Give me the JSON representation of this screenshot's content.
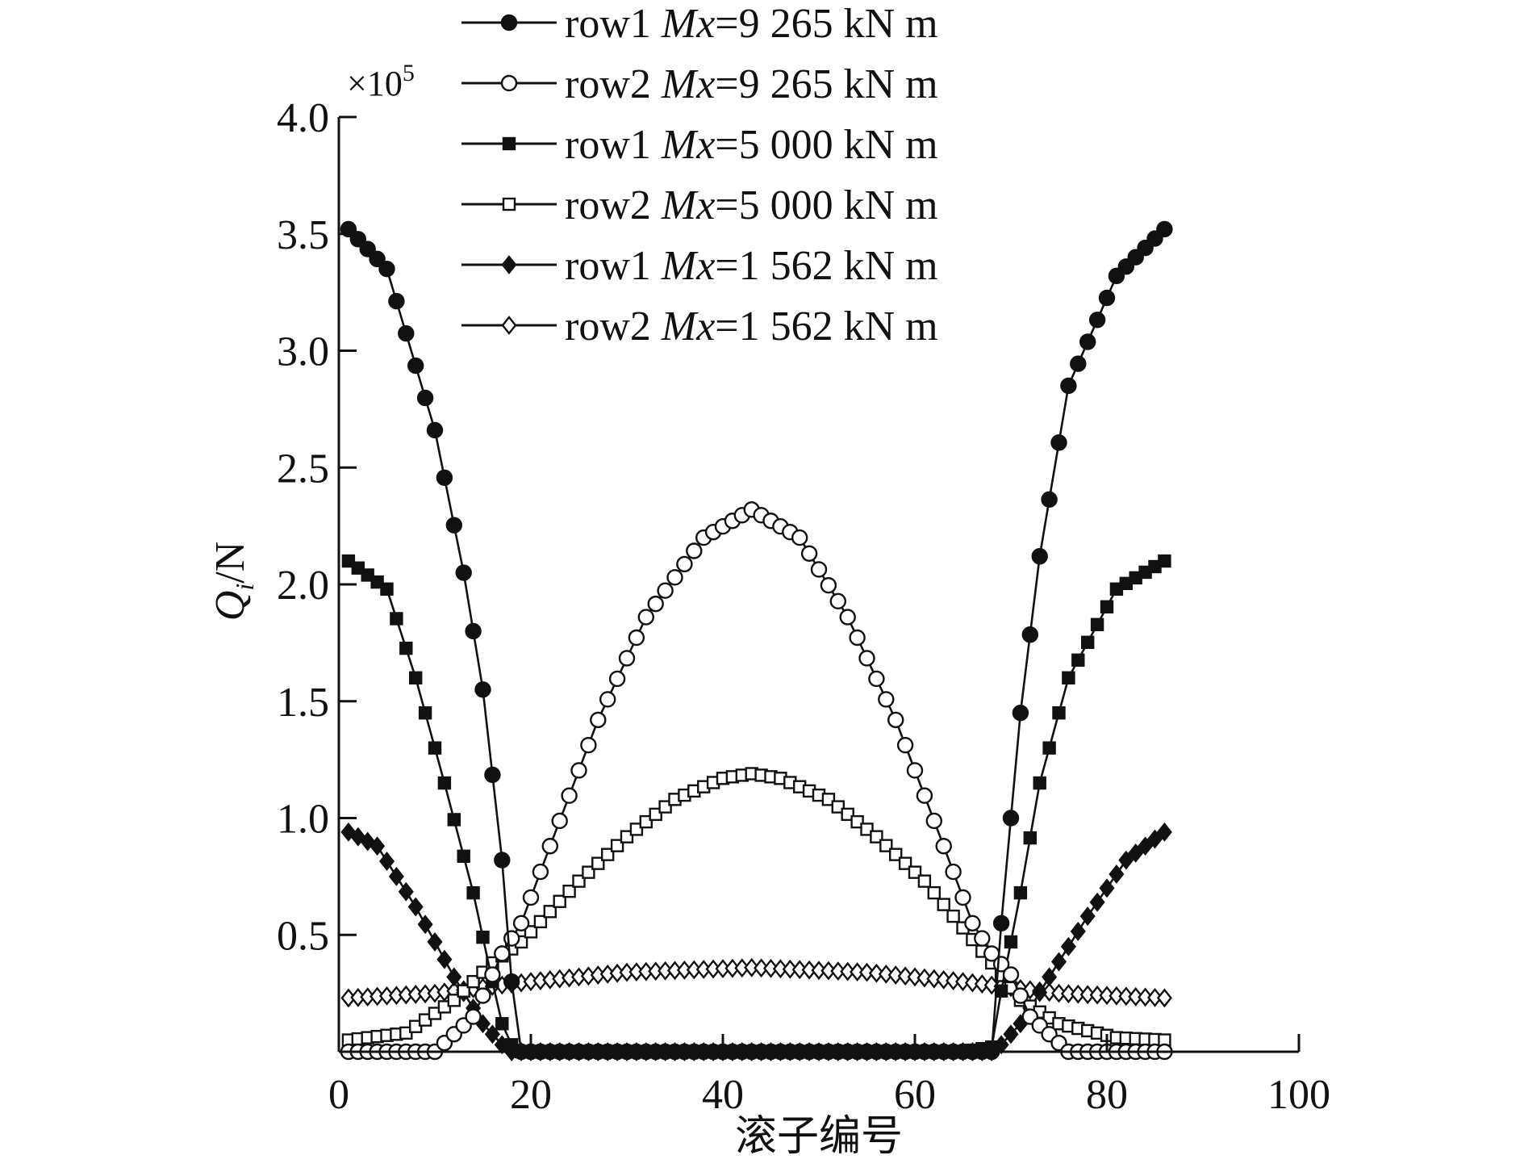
{
  "chart_data": {
    "type": "line",
    "xlabel": "滚子编号",
    "ylabel": "Q",
    "ylabel_sub": "i",
    "ylabel_unit": "/N",
    "y_multiplier": "×10",
    "y_multiplier_exp": "5",
    "xlim": [
      0,
      100
    ],
    "ylim": [
      0,
      4.0
    ],
    "x_ticks": [
      "0",
      "20",
      "40",
      "60",
      "80",
      "100"
    ],
    "y_ticks": [
      "0.5",
      "1.0",
      "1.5",
      "2.0",
      "2.5",
      "3.0",
      "3.5",
      "4.0"
    ],
    "x_range_rollers": [
      1,
      86
    ],
    "legend_position": "top",
    "series": [
      {
        "name": "row1 Mx=9 265 kN m",
        "label_pre": "row1 ",
        "label_ital": "Mx",
        "label_post": "=9 265 kN m",
        "marker": "circle",
        "filled": true,
        "x": [
          1,
          5,
          10,
          13,
          15,
          17,
          18,
          19,
          25,
          35,
          45,
          55,
          65,
          68,
          69,
          71,
          73,
          76,
          81,
          86
        ],
        "y": [
          3.52,
          3.35,
          2.66,
          2.05,
          1.55,
          0.82,
          0.3,
          0.0,
          0.0,
          0.0,
          0.0,
          0.0,
          0.0,
          0.0,
          0.55,
          1.45,
          2.12,
          2.85,
          3.32,
          3.52
        ]
      },
      {
        "name": "row2 Mx=9 265 kN m",
        "label_pre": "row2 ",
        "label_ital": "Mx",
        "label_post": "=9 265 kN m",
        "marker": "circle",
        "filled": false,
        "x": [
          1,
          10,
          14,
          16,
          17,
          19,
          22,
          27,
          32,
          38,
          43,
          48,
          53,
          58,
          63,
          66,
          68,
          70,
          72,
          76,
          86
        ],
        "y": [
          0.0,
          0.0,
          0.15,
          0.33,
          0.42,
          0.55,
          0.88,
          1.42,
          1.86,
          2.2,
          2.32,
          2.2,
          1.86,
          1.42,
          0.88,
          0.55,
          0.42,
          0.33,
          0.15,
          0.0,
          0.0
        ]
      },
      {
        "name": "row1 Mx=5 000 kN m",
        "label_pre": "row1 ",
        "label_ital": "Mx",
        "label_post": "=5 000 kN m",
        "marker": "square",
        "filled": true,
        "x": [
          1,
          5,
          8,
          11,
          14,
          16,
          17,
          18,
          19,
          25,
          35,
          45,
          55,
          65,
          68,
          69,
          71,
          73,
          76,
          81,
          86
        ],
        "y": [
          2.1,
          1.98,
          1.6,
          1.15,
          0.68,
          0.3,
          0.12,
          0.03,
          0.0,
          0.0,
          0.0,
          0.0,
          0.0,
          0.0,
          0.02,
          0.26,
          0.68,
          1.15,
          1.6,
          1.98,
          2.1
        ]
      },
      {
        "name": "row2 Mx=5 000 kN m",
        "label_pre": "row2 ",
        "label_ital": "Mx",
        "label_post": "=5 000 kN m",
        "marker": "square",
        "filled": false,
        "x": [
          1,
          7,
          12,
          16,
          19,
          25,
          30,
          35,
          40,
          43,
          46,
          51,
          56,
          61,
          65,
          68,
          71,
          75,
          81,
          86
        ],
        "y": [
          0.05,
          0.08,
          0.22,
          0.38,
          0.47,
          0.73,
          0.92,
          1.08,
          1.17,
          1.19,
          1.17,
          1.08,
          0.92,
          0.73,
          0.53,
          0.38,
          0.22,
          0.12,
          0.06,
          0.05
        ]
      },
      {
        "name": "row1 Mx=1 562 kN m",
        "label_pre": "row1 ",
        "label_ital": "Mx",
        "label_post": "=1 562 kN m",
        "marker": "diamond",
        "filled": true,
        "x": [
          1,
          4,
          8,
          12,
          15,
          17,
          18,
          19,
          25,
          35,
          45,
          55,
          65,
          68,
          69,
          71,
          74,
          78,
          82,
          86
        ],
        "y": [
          0.94,
          0.88,
          0.62,
          0.32,
          0.12,
          0.03,
          0.0,
          0.0,
          0.0,
          0.0,
          0.0,
          0.0,
          0.0,
          0.0,
          0.03,
          0.12,
          0.32,
          0.58,
          0.82,
          0.94
        ]
      },
      {
        "name": "row2 Mx=1 562 kN m",
        "label_pre": "row2 ",
        "label_ital": "Mx",
        "label_post": "=1 562 kN m",
        "marker": "diamond",
        "filled": false,
        "x": [
          1,
          10,
          20,
          30,
          43,
          55,
          65,
          75,
          86
        ],
        "y": [
          0.23,
          0.25,
          0.3,
          0.34,
          0.36,
          0.34,
          0.3,
          0.25,
          0.23
        ]
      }
    ]
  }
}
